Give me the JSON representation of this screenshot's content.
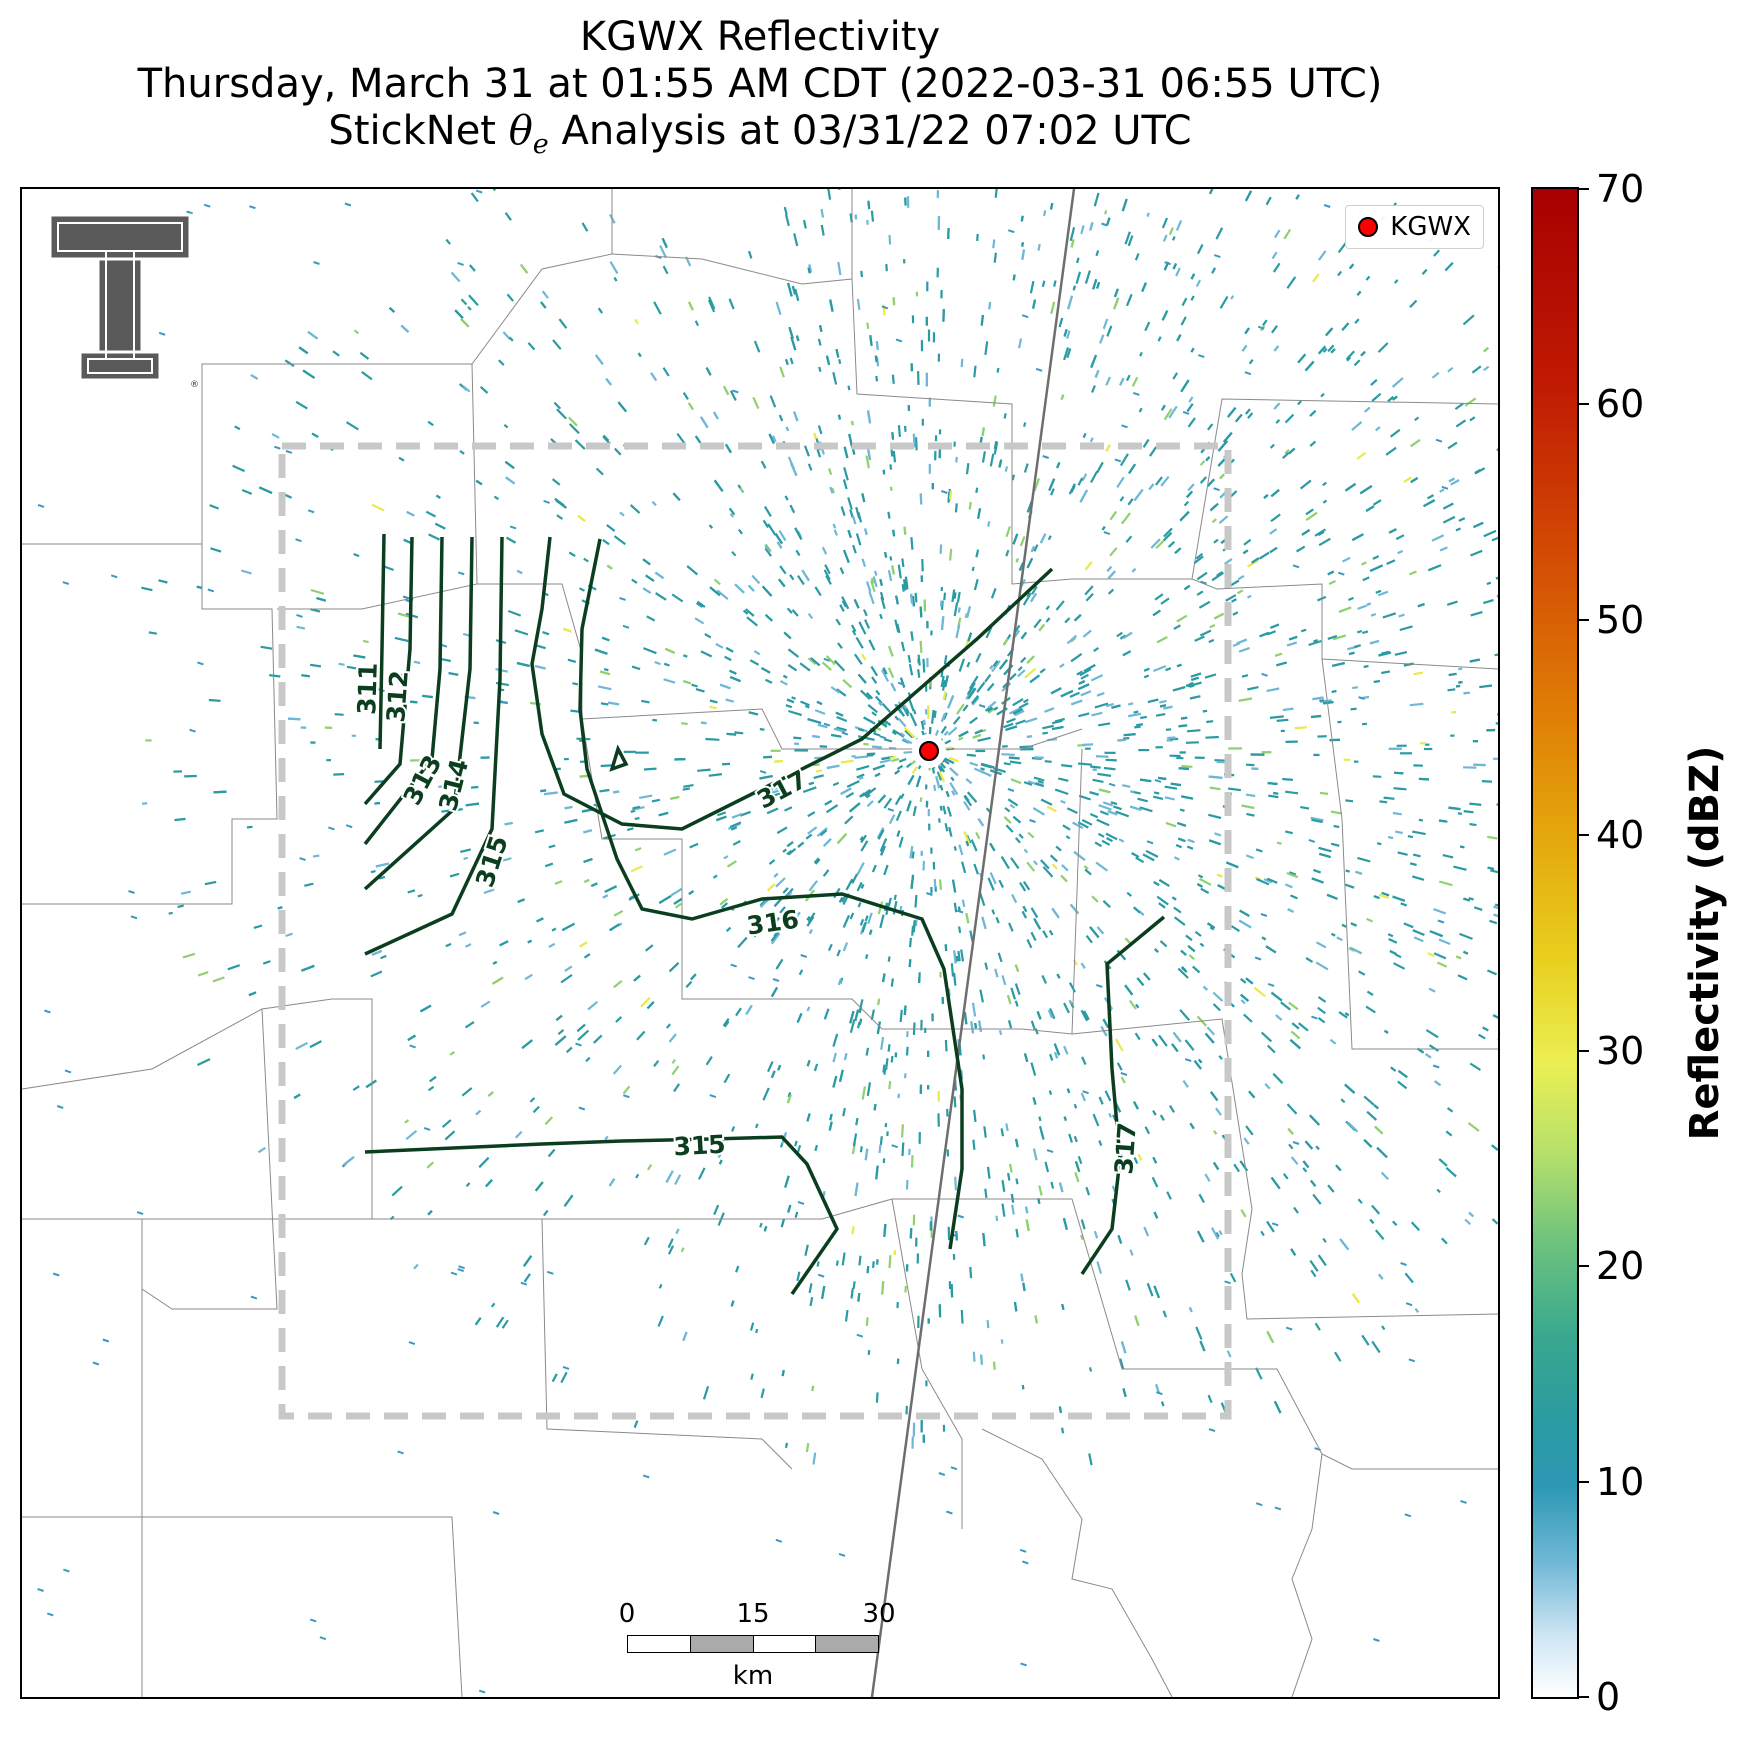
{
  "title": {
    "line1": "KGWX Reflectivity",
    "line2": "Thursday, March 31 at 01:55 AM CDT (2022-03-31 06:55 UTC)",
    "line3_prefix": "StickNet",
    "line3_symbol": "θ",
    "line3_subscript": "e",
    "line3_suffix": "Analysis at 03/31/22 07:02 UTC"
  },
  "legend": {
    "label": "KGWX",
    "marker_color": "#ff0000"
  },
  "colorbar": {
    "label": "Reflectivity (dBZ)",
    "ticks": [
      "70",
      "60",
      "50",
      "40",
      "30",
      "20",
      "10",
      "0"
    ],
    "range": [
      0,
      70
    ]
  },
  "scalebar": {
    "ticks": [
      "0",
      "15",
      "30"
    ],
    "unit": "km"
  },
  "contours": {
    "color": "#0b3d1f",
    "labels": [
      "311",
      "312",
      "313",
      "314",
      "315",
      "317",
      "316",
      "315",
      "317"
    ]
  },
  "colors": {
    "analysis_box": "#c8c8c8",
    "county_lines": "#8a8a8a",
    "highway": "#6e6e6e",
    "echo_low": "#2a9aa3",
    "echo_mid": "#8fd06f",
    "echo_high": "#e8ea4a"
  },
  "icons": {
    "logo": "texas-tech-double-t-logo",
    "radar": "radar-site-marker"
  }
}
